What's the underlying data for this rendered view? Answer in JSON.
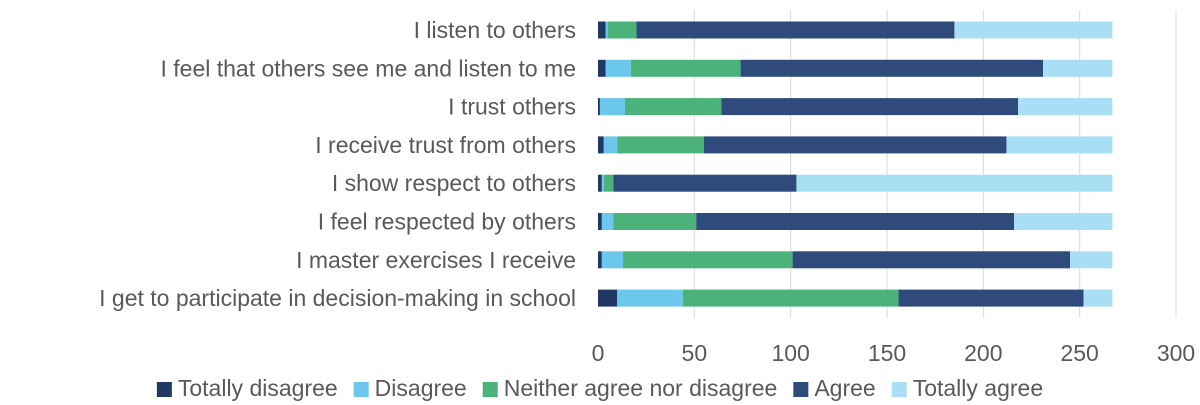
{
  "chart_data": {
    "type": "bar",
    "orientation": "horizontal",
    "stacked": true,
    "title": "",
    "xlabel": "",
    "ylabel": "",
    "categories": [
      "I listen to others",
      "I feel that others see me and listen to me",
      "I trust others",
      "I receive trust from others",
      "I show respect to others",
      "I feel respected by others",
      "I master exercises I receive",
      "I get to participate in decision-making in school"
    ],
    "series": [
      {
        "name": "Totally disagree",
        "color": "#203864",
        "values": [
          4,
          4,
          1,
          3,
          2,
          2,
          2,
          10
        ]
      },
      {
        "name": "Disagree",
        "color": "#6cc7ec",
        "values": [
          1,
          13,
          13,
          7,
          1,
          6,
          11,
          34
        ]
      },
      {
        "name": "Neither agree nor disagree",
        "color": "#4bb27a",
        "values": [
          15,
          57,
          50,
          45,
          5,
          43,
          88,
          112
        ]
      },
      {
        "name": "Agree",
        "color": "#2f4b7c",
        "values": [
          165,
          157,
          154,
          157,
          95,
          165,
          144,
          96
        ]
      },
      {
        "name": "Totally agree",
        "color": "#a8dff5",
        "values": [
          82,
          36,
          49,
          55,
          164,
          51,
          22,
          15
        ]
      }
    ],
    "xlim": [
      0,
      300
    ],
    "xticks": [
      "0",
      "50",
      "100",
      "150",
      "200",
      "250",
      "300"
    ],
    "grid": "vertical",
    "legend_position": "bottom"
  }
}
